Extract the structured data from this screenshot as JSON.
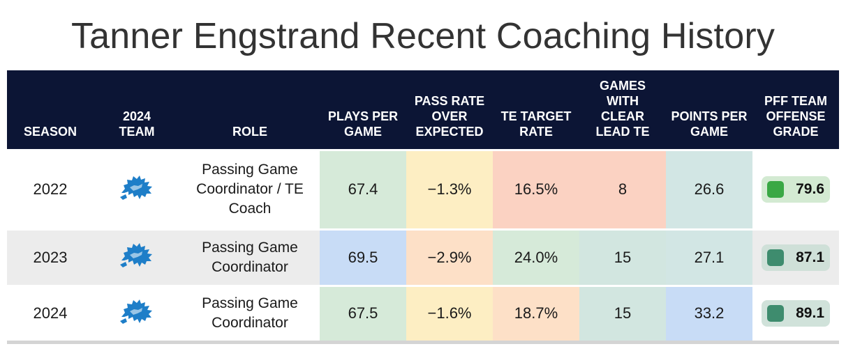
{
  "title": "Tanner Engstrand Recent Coaching History",
  "colors": {
    "header_bg": "#0c1535",
    "lions_blue": "#1e7ec8",
    "heat_green": "#d6ead9",
    "heat_teal": "#d2e6e4",
    "heat_blue": "#c8dcf6",
    "heat_yellow": "#fdeec3",
    "heat_orange": "#fde0c7",
    "heat_red": "#fbd2c2",
    "grade_green": "#3aa845",
    "grade_darkgreen": "#3e8c6e"
  },
  "chart_data": {
    "type": "table",
    "title": "Tanner Engstrand Recent Coaching History",
    "columns": [
      {
        "key": "season",
        "label": "SEASON"
      },
      {
        "key": "team",
        "label": "2024 TEAM"
      },
      {
        "key": "role",
        "label": "ROLE"
      },
      {
        "key": "plays",
        "label": "PLAYS PER GAME"
      },
      {
        "key": "proe",
        "label": "PASS RATE OVER EXPECTED"
      },
      {
        "key": "te_target",
        "label": "TE TARGET RATE"
      },
      {
        "key": "lead_te",
        "label": "GAMES WITH CLEAR LEAD TE"
      },
      {
        "key": "ppg",
        "label": "POINTS PER GAME"
      },
      {
        "key": "grade",
        "label": "PFF TEAM OFFENSE GRADE"
      }
    ],
    "rows": [
      {
        "season": "2022",
        "team_icon": "detroit-lions-logo",
        "role": "Passing Game Coordinator / TE Coach",
        "plays": "67.4",
        "proe": "−1.3%",
        "te_target": "16.5%",
        "lead_te": "8",
        "ppg": "26.6",
        "grade": "79.6",
        "colors": {
          "plays": "#d6ead9",
          "proe": "#fdeec3",
          "te_target": "#fbd2c2",
          "lead_te": "#fbd2c2",
          "ppg": "#d2e6e4",
          "grade_bg": "#d3ead2",
          "grade_sq": "#3aa845"
        }
      },
      {
        "season": "2023",
        "team_icon": "detroit-lions-logo",
        "role": "Passing Game Coordinator",
        "plays": "69.5",
        "proe": "−2.9%",
        "te_target": "24.0%",
        "lead_te": "15",
        "ppg": "27.1",
        "grade": "87.1",
        "colors": {
          "plays": "#c8dcf6",
          "proe": "#fde0c7",
          "te_target": "#d6ead9",
          "lead_te": "#d2e6e0",
          "ppg": "#d2e6e4",
          "grade_bg": "#cfe0d8",
          "grade_sq": "#3e8c6e"
        }
      },
      {
        "season": "2024",
        "team_icon": "detroit-lions-logo",
        "role": "Passing Game Coordinator",
        "plays": "67.5",
        "proe": "−1.6%",
        "te_target": "18.7%",
        "lead_te": "15",
        "ppg": "33.2",
        "grade": "89.1",
        "colors": {
          "plays": "#d6ead9",
          "proe": "#fdeec3",
          "te_target": "#fde0c7",
          "lead_te": "#d2e6e0",
          "ppg": "#c8dcf6",
          "grade_bg": "#d0e2da",
          "grade_sq": "#3e8c6e"
        }
      }
    ]
  }
}
